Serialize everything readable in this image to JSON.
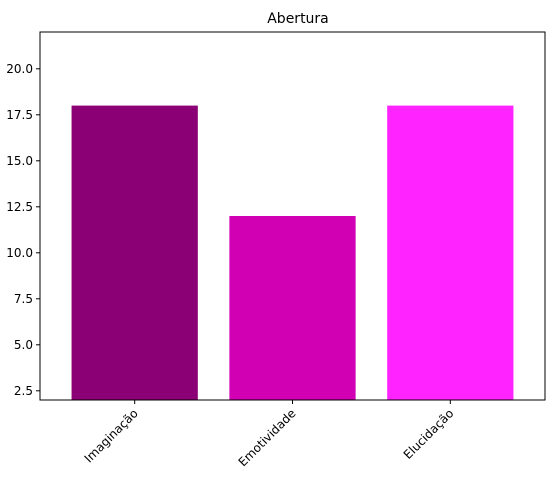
{
  "chart_data": {
    "type": "bar",
    "title": "Abertura",
    "xlabel": "",
    "ylabel": "",
    "categories": [
      "Imaginação",
      "Emotividade",
      "Elucidação"
    ],
    "values": [
      18,
      12,
      18
    ],
    "colors": [
      "#8b0074",
      "#d100b2",
      "#ff24ff"
    ],
    "ylim": [
      2,
      22
    ],
    "yticks": [
      2.5,
      5.0,
      7.5,
      10.0,
      12.5,
      15.0,
      17.5,
      20.0
    ],
    "ytick_labels": [
      "2.5",
      "5.0",
      "7.5",
      "10.0",
      "12.5",
      "15.0",
      "17.5",
      "20.0"
    ],
    "grid": false,
    "legend": "none"
  }
}
